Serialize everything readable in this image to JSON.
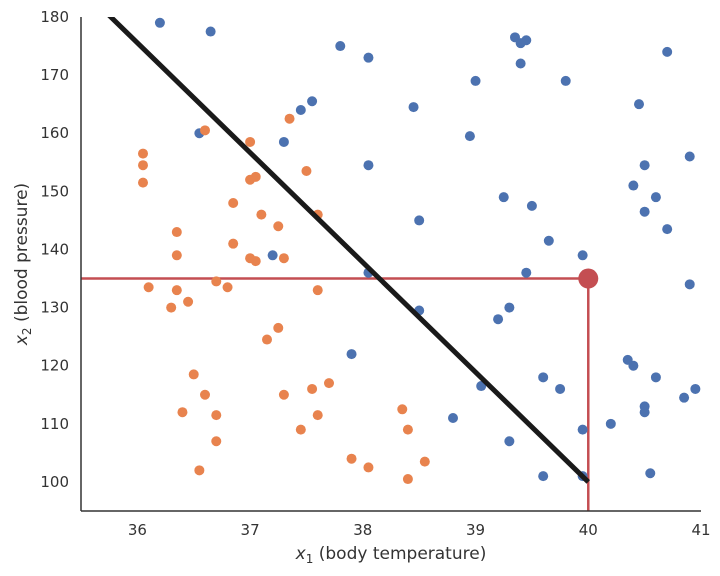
{
  "chart_data": {
    "type": "scatter",
    "xlabel_var": "x",
    "xlabel_sub": "1",
    "xlabel_rest": " (body temperature)",
    "ylabel_var": "x",
    "ylabel_sub": "2",
    "ylabel_rest": " (blood pressure)",
    "xlim": [
      35.5,
      41
    ],
    "ylim": [
      95,
      180
    ],
    "xticks": [
      36,
      37,
      38,
      39,
      40,
      41
    ],
    "yticks": [
      100,
      110,
      120,
      130,
      140,
      150,
      160,
      170,
      180
    ],
    "grid": false,
    "colors": {
      "blue": "#4C72B0",
      "orange": "#E8834E",
      "line": "#1a1a1a",
      "highlight": "#C44E52"
    },
    "series": [
      {
        "color": "blue",
        "points": [
          [
            36.2,
            179
          ],
          [
            36.65,
            177.5
          ],
          [
            37.8,
            175
          ],
          [
            38.05,
            173
          ],
          [
            39.35,
            176.5
          ],
          [
            39.4,
            175.5
          ],
          [
            39.45,
            176
          ],
          [
            39.4,
            172
          ],
          [
            40.7,
            174
          ],
          [
            39.0,
            169
          ],
          [
            39.8,
            169
          ],
          [
            37.55,
            165.5
          ],
          [
            37.45,
            164
          ],
          [
            38.45,
            164.5
          ],
          [
            40.45,
            165
          ],
          [
            36.55,
            160
          ],
          [
            37.3,
            158.5
          ],
          [
            38.95,
            159.5
          ],
          [
            38.05,
            154.5
          ],
          [
            40.5,
            154.5
          ],
          [
            40.9,
            156
          ],
          [
            40.4,
            151
          ],
          [
            39.25,
            149
          ],
          [
            39.5,
            147.5
          ],
          [
            40.6,
            149
          ],
          [
            40.5,
            146.5
          ],
          [
            38.5,
            145
          ],
          [
            40.7,
            143.5
          ],
          [
            39.65,
            141.5
          ],
          [
            37.2,
            139
          ],
          [
            39.95,
            139
          ],
          [
            38.05,
            136
          ],
          [
            39.45,
            136
          ],
          [
            40.9,
            134
          ],
          [
            39.3,
            130
          ],
          [
            38.5,
            129.5
          ],
          [
            39.2,
            128
          ],
          [
            37.9,
            122
          ],
          [
            40.35,
            121
          ],
          [
            40.4,
            120
          ],
          [
            39.6,
            118
          ],
          [
            40.6,
            118
          ],
          [
            39.75,
            116
          ],
          [
            39.05,
            116.5
          ],
          [
            40.95,
            116
          ],
          [
            40.5,
            113
          ],
          [
            40.5,
            112
          ],
          [
            40.85,
            114.5
          ],
          [
            38.8,
            111
          ],
          [
            40.2,
            110
          ],
          [
            39.95,
            109
          ],
          [
            39.3,
            107
          ],
          [
            39.6,
            101
          ],
          [
            39.95,
            101
          ],
          [
            40.55,
            101.5
          ]
        ]
      },
      {
        "color": "orange",
        "points": [
          [
            36.6,
            160.5
          ],
          [
            37.0,
            158.5
          ],
          [
            37.35,
            162.5
          ],
          [
            36.05,
            156.5
          ],
          [
            36.05,
            154.5
          ],
          [
            36.05,
            151.5
          ],
          [
            37.5,
            153.5
          ],
          [
            37.05,
            152.5
          ],
          [
            37.0,
            152
          ],
          [
            36.85,
            148
          ],
          [
            37.1,
            146
          ],
          [
            37.6,
            146
          ],
          [
            37.25,
            144
          ],
          [
            36.35,
            143
          ],
          [
            36.85,
            141
          ],
          [
            36.35,
            139
          ],
          [
            37.05,
            138
          ],
          [
            37.0,
            138.5
          ],
          [
            37.3,
            138.5
          ],
          [
            36.7,
            134.5
          ],
          [
            36.8,
            133.5
          ],
          [
            36.1,
            133.5
          ],
          [
            36.35,
            133
          ],
          [
            37.6,
            133
          ],
          [
            36.45,
            131
          ],
          [
            36.3,
            130
          ],
          [
            37.25,
            126.5
          ],
          [
            37.15,
            124.5
          ],
          [
            36.5,
            118.5
          ],
          [
            37.7,
            117
          ],
          [
            37.55,
            116
          ],
          [
            36.6,
            115
          ],
          [
            37.3,
            115
          ],
          [
            38.35,
            112.5
          ],
          [
            36.4,
            112
          ],
          [
            36.7,
            111.5
          ],
          [
            37.6,
            111.5
          ],
          [
            38.4,
            109
          ],
          [
            37.45,
            109
          ],
          [
            36.7,
            107
          ],
          [
            37.9,
            104
          ],
          [
            38.05,
            102.5
          ],
          [
            38.55,
            103.5
          ],
          [
            36.55,
            102
          ],
          [
            38.4,
            100.5
          ]
        ]
      }
    ],
    "boundary_line": {
      "x": [
        35.5,
        40.0
      ],
      "y": [
        185.0,
        100.0
      ]
    },
    "highlight_point": {
      "x": 40,
      "y": 135
    }
  }
}
